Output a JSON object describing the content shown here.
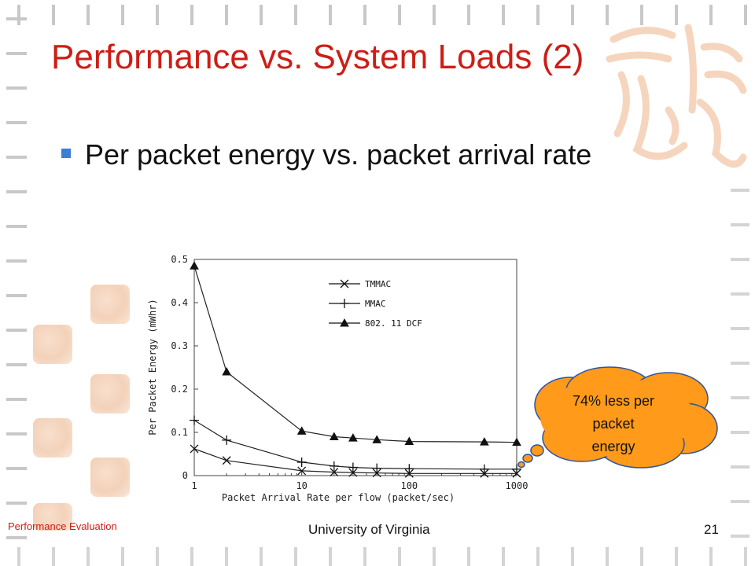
{
  "slide": {
    "title": "Performance vs. System Loads (2)",
    "bullet": "Per packet energy vs. packet arrival rate",
    "callout_lines": [
      "74% less per",
      "packet",
      "energy"
    ],
    "footer_left": "Performance Evaluation",
    "footer_center": "University of Virginia",
    "page_number": "21"
  },
  "colors": {
    "title": "#cc1e16",
    "bullet": "#3a7fd6",
    "callout_fill": "#ff9a1a",
    "callout_stroke": "#2f55a0",
    "footer_left": "#cc1e16"
  },
  "chart_data": {
    "type": "line",
    "title": "",
    "xlabel": "Packet Arrival Rate per flow (packet/sec)",
    "ylabel": "Per Packet Energy (mWhr)",
    "x_scale": "log",
    "xlim": [
      1,
      1000
    ],
    "ylim": [
      0,
      0.5
    ],
    "x_ticks": [
      1,
      10,
      100,
      1000
    ],
    "x_tick_labels": [
      "1",
      "10",
      "100",
      "1000"
    ],
    "y_ticks": [
      0,
      0.1,
      0.2,
      0.3,
      0.4,
      0.5
    ],
    "y_tick_labels": [
      "0",
      "0.1",
      "0.2",
      "0.3",
      "0.4",
      "0.5"
    ],
    "grid": false,
    "legend_position": "top-center",
    "series": [
      {
        "name": "TMMAC",
        "marker": "x",
        "x": [
          1,
          2,
          10,
          20,
          30,
          50,
          100,
          500,
          1000
        ],
        "y": [
          0.062,
          0.035,
          0.011,
          0.008,
          0.007,
          0.006,
          0.005,
          0.005,
          0.005
        ]
      },
      {
        "name": "MMAC",
        "marker": "plus",
        "x": [
          1,
          2,
          10,
          20,
          30,
          50,
          100,
          500,
          1000
        ],
        "y": [
          0.128,
          0.082,
          0.031,
          0.022,
          0.019,
          0.017,
          0.016,
          0.015,
          0.015
        ]
      },
      {
        "name": "802. 11 DCF",
        "marker": "triangle",
        "x": [
          1,
          2,
          10,
          20,
          30,
          50,
          100,
          500,
          1000
        ],
        "y": [
          0.485,
          0.24,
          0.103,
          0.09,
          0.087,
          0.083,
          0.079,
          0.078,
          0.077
        ]
      }
    ]
  }
}
